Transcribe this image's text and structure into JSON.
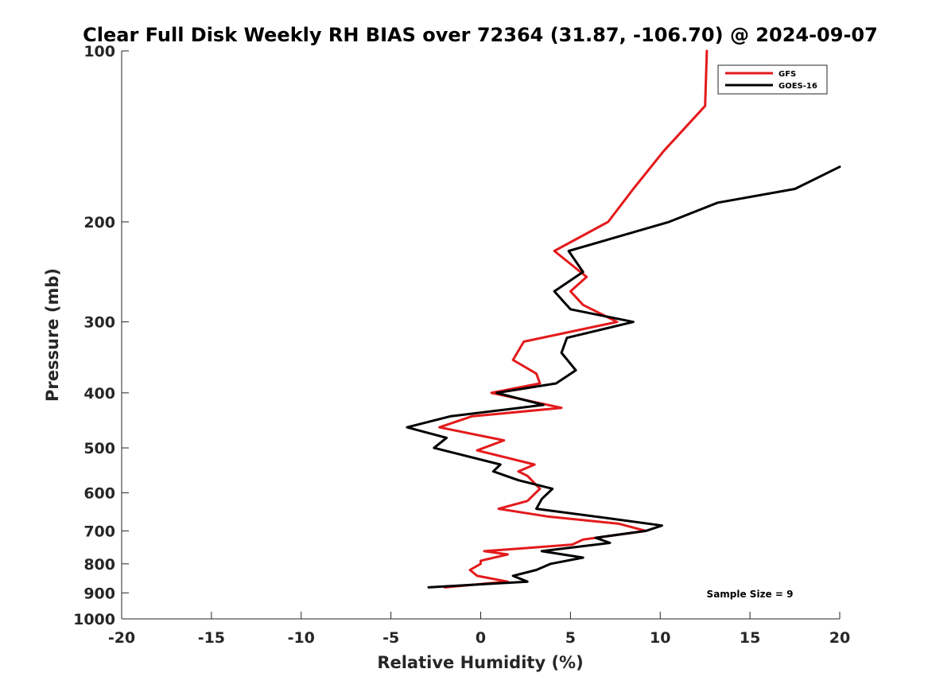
{
  "chart_data": {
    "type": "line",
    "title": "Clear Full Disk Weekly RH BIAS over 72364 (31.87, -106.70) @ 2024-09-07",
    "xlabel": "Relative Humidity (%)",
    "ylabel": "Pressure (mb)",
    "xlim": [
      -20,
      20
    ],
    "ylim": [
      100,
      1000
    ],
    "y_scale": "log",
    "y_reversed": true,
    "grid": false,
    "x_ticks": [
      -20,
      -15,
      -10,
      -5,
      0,
      5,
      10,
      15,
      20
    ],
    "x_tick_labels": [
      "-20",
      "-15",
      "-10",
      "-5",
      "0",
      "5",
      "10",
      "15",
      "20"
    ],
    "y_ticks": [
      100,
      200,
      300,
      400,
      500,
      600,
      700,
      800,
      900,
      1000
    ],
    "y_tick_labels": [
      "100",
      "200",
      "300",
      "400",
      "500",
      "600",
      "700",
      "800",
      "900",
      "1000"
    ],
    "legend": {
      "placement": "top-right"
    },
    "annotation": "Sample Size = 9",
    "series": [
      {
        "name": "GFS",
        "color": "#e31a1c",
        "points": [
          [
            12.6,
            100
          ],
          [
            12.5,
            125
          ],
          [
            10.2,
            150
          ],
          [
            8.5,
            175
          ],
          [
            7.1,
            200
          ],
          [
            4.1,
            225
          ],
          [
            5.9,
            250
          ],
          [
            5.0,
            265
          ],
          [
            5.7,
            280
          ],
          [
            7.6,
            300
          ],
          [
            2.4,
            325
          ],
          [
            1.8,
            350
          ],
          [
            3.1,
            370
          ],
          [
            3.3,
            385
          ],
          [
            0.6,
            400
          ],
          [
            4.5,
            425
          ],
          [
            -0.5,
            440
          ],
          [
            -2.3,
            460
          ],
          [
            1.3,
            485
          ],
          [
            -0.2,
            505
          ],
          [
            3.0,
            535
          ],
          [
            2.1,
            550
          ],
          [
            2.6,
            560
          ],
          [
            3.3,
            590
          ],
          [
            2.6,
            620
          ],
          [
            1.0,
            640
          ],
          [
            3.7,
            660
          ],
          [
            7.7,
            680
          ],
          [
            9.2,
            700
          ],
          [
            5.7,
            725
          ],
          [
            5.1,
            740
          ],
          [
            0.2,
            760
          ],
          [
            1.5,
            770
          ],
          [
            0.0,
            790
          ],
          [
            0.0,
            800
          ],
          [
            -0.6,
            820
          ],
          [
            -0.2,
            840
          ],
          [
            1.5,
            860
          ],
          [
            -2.0,
            880
          ]
        ]
      },
      {
        "name": "GOES-16",
        "color": "#000000",
        "points": [
          [
            20.0,
            160
          ],
          [
            17.5,
            175
          ],
          [
            13.2,
            185
          ],
          [
            10.5,
            200
          ],
          [
            4.9,
            225
          ],
          [
            5.7,
            245
          ],
          [
            4.1,
            265
          ],
          [
            5.0,
            285
          ],
          [
            8.5,
            300
          ],
          [
            4.8,
            320
          ],
          [
            4.5,
            340
          ],
          [
            5.3,
            365
          ],
          [
            4.2,
            385
          ],
          [
            0.9,
            400
          ],
          [
            3.5,
            420
          ],
          [
            -1.7,
            440
          ],
          [
            -4.1,
            460
          ],
          [
            -1.9,
            480
          ],
          [
            -2.6,
            500
          ],
          [
            1.1,
            535
          ],
          [
            0.7,
            550
          ],
          [
            2.1,
            570
          ],
          [
            4.0,
            590
          ],
          [
            3.4,
            615
          ],
          [
            3.1,
            640
          ],
          [
            7.1,
            665
          ],
          [
            10.1,
            685
          ],
          [
            9.2,
            700
          ],
          [
            6.4,
            720
          ],
          [
            7.2,
            735
          ],
          [
            3.4,
            760
          ],
          [
            5.7,
            780
          ],
          [
            3.9,
            800
          ],
          [
            3.1,
            820
          ],
          [
            1.8,
            840
          ],
          [
            2.6,
            860
          ],
          [
            -2.9,
            880
          ]
        ]
      }
    ]
  }
}
